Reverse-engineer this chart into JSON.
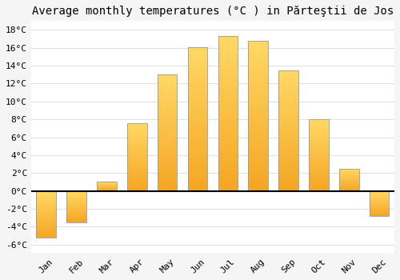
{
  "title": "Average monthly temperatures (°C ) in Părteştii de Jos",
  "months": [
    "Jan",
    "Feb",
    "Mar",
    "Apr",
    "May",
    "Jun",
    "Jul",
    "Aug",
    "Sep",
    "Oct",
    "Nov",
    "Dec"
  ],
  "values": [
    -5.2,
    -3.5,
    1.0,
    7.6,
    13.0,
    16.1,
    17.3,
    16.8,
    13.5,
    8.0,
    2.5,
    -2.8
  ],
  "bar_color_bottom": "#F5A623",
  "bar_color_top": "#FFD966",
  "bar_edge_color": "#999999",
  "background_color": "#f5f5f5",
  "plot_bg_color": "#ffffff",
  "ylim": [
    -7,
    19
  ],
  "yticks": [
    -6,
    -4,
    -2,
    0,
    2,
    4,
    6,
    8,
    10,
    12,
    14,
    16,
    18
  ],
  "grid_color": "#e0e0e0",
  "zero_line_color": "#000000",
  "title_fontsize": 10,
  "tick_fontsize": 8
}
